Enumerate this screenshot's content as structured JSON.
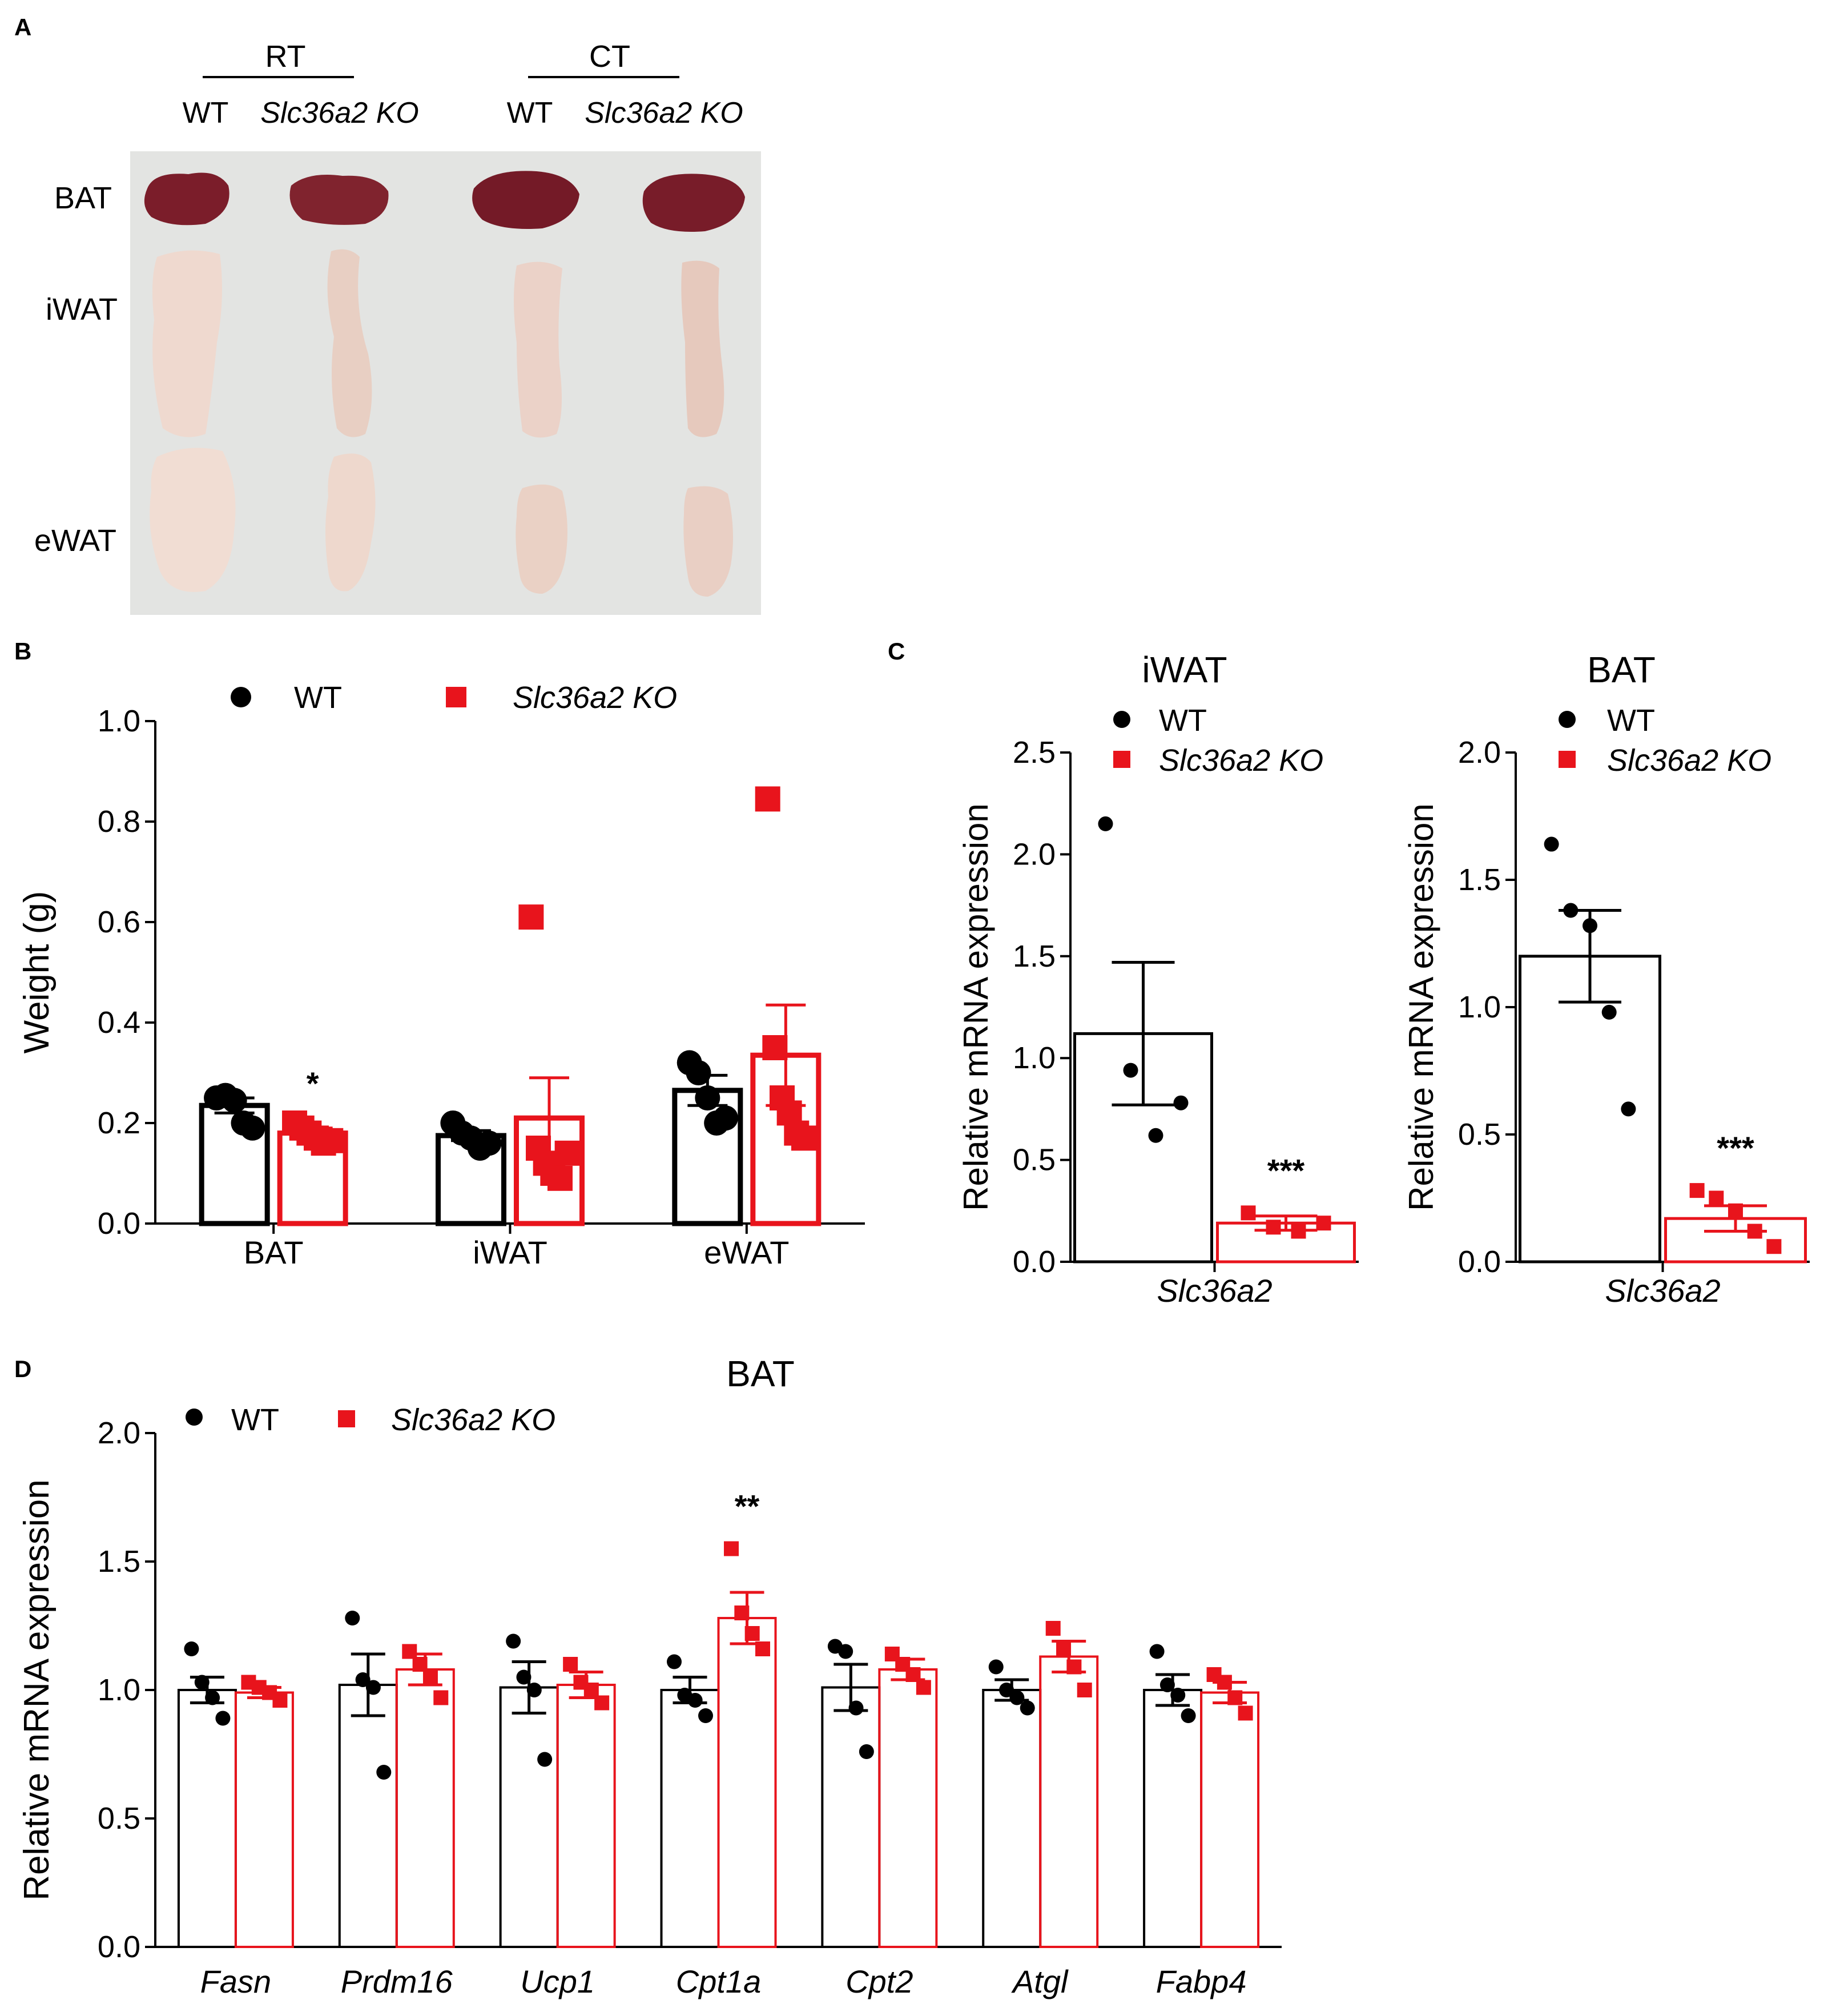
{
  "colors": {
    "wt": "#000000",
    "ko": "#e8141c",
    "photo_bg": "#e3e4e2",
    "bat_tissue": "#7b1d2a",
    "wat_tissue": "#efd9cf"
  },
  "panel_labels": {
    "a": "A",
    "b": "B",
    "c": "C",
    "d": "D"
  },
  "legend": {
    "wt": "WT",
    "ko": "Slc36a2 KO"
  },
  "panel_a": {
    "groups": [
      {
        "label": "RT",
        "columns": [
          "WT",
          "Slc36a2 KO"
        ]
      },
      {
        "label": "CT",
        "columns": [
          "WT",
          "Slc36a2 KO"
        ]
      }
    ],
    "rows": [
      "BAT",
      "iWAT",
      "eWAT"
    ]
  },
  "chart_data": [
    {
      "id": "B",
      "type": "bar",
      "title": "",
      "ylabel": "Weight (g)",
      "xlabel": "",
      "ylim": [
        0,
        1.0
      ],
      "yticks": [
        "0.0",
        "0.2",
        "0.4",
        "0.6",
        "0.8",
        "1.0"
      ],
      "categories": [
        "BAT",
        "iWAT",
        "eWAT"
      ],
      "series": [
        {
          "name": "WT",
          "values": [
            0.235,
            0.175,
            0.265
          ],
          "sem": [
            0.015,
            0.01,
            0.03
          ],
          "points": [
            [
              0.25,
              0.255,
              0.245,
              0.2,
              0.19
            ],
            [
              0.2,
              0.18,
              0.17,
              0.15,
              0.16
            ],
            [
              0.32,
              0.3,
              0.25,
              0.2,
              0.21
            ]
          ]
        },
        {
          "name": "Slc36a2 KO",
          "values": [
            0.18,
            0.21,
            0.335
          ],
          "sem": [
            0.01,
            0.08,
            0.1
          ],
          "points": [
            [
              0.2,
              0.19,
              0.18,
              0.17,
              0.16,
              0.165
            ],
            [
              0.61,
              0.15,
              0.12,
              0.1,
              0.09,
              0.14
            ],
            [
              0.845,
              0.35,
              0.25,
              0.22,
              0.18,
              0.17
            ]
          ]
        }
      ],
      "annotations": [
        {
          "category": "BAT",
          "series": "Slc36a2 KO",
          "text": "*"
        }
      ]
    },
    {
      "id": "C-iWAT",
      "type": "bar",
      "title": "iWAT",
      "ylabel": "Relative mRNA expression",
      "xlabel": "Slc36a2",
      "ylim": [
        0,
        2.5
      ],
      "yticks": [
        "0.0",
        "0.5",
        "1.0",
        "1.5",
        "2.0",
        "2.5"
      ],
      "categories": [
        "Slc36a2"
      ],
      "series": [
        {
          "name": "WT",
          "values": [
            1.12
          ],
          "sem": [
            0.35
          ],
          "points": [
            [
              2.15,
              0.94,
              0.62,
              0.78
            ]
          ]
        },
        {
          "name": "Slc36a2 KO",
          "values": [
            0.19
          ],
          "sem": [
            0.035
          ],
          "points": [
            [
              0.24,
              0.17,
              0.15,
              0.19
            ]
          ]
        }
      ],
      "annotations": [
        {
          "category": "Slc36a2",
          "series": "Slc36a2 KO",
          "text": "***"
        }
      ]
    },
    {
      "id": "C-BAT",
      "type": "bar",
      "title": "BAT",
      "ylabel": "Relative mRNA expression",
      "xlabel": "Slc36a2",
      "ylim": [
        0,
        2.0
      ],
      "yticks": [
        "0.0",
        "0.5",
        "1.0",
        "1.5",
        "2.0"
      ],
      "categories": [
        "Slc36a2"
      ],
      "series": [
        {
          "name": "WT",
          "values": [
            1.2
          ],
          "sem": [
            0.18
          ],
          "points": [
            [
              1.64,
              1.38,
              1.32,
              0.98,
              0.6
            ]
          ]
        },
        {
          "name": "Slc36a2 KO",
          "values": [
            0.17
          ],
          "sem": [
            0.05
          ],
          "points": [
            [
              0.28,
              0.25,
              0.2,
              0.12,
              0.06
            ]
          ]
        }
      ],
      "annotations": [
        {
          "category": "Slc36a2",
          "series": "Slc36a2 KO",
          "text": "***"
        }
      ]
    },
    {
      "id": "D",
      "type": "bar",
      "title": "BAT",
      "ylabel": "Relative mRNA expression",
      "xlabel": "",
      "ylim": [
        0,
        2.0
      ],
      "yticks": [
        "0.0",
        "0.5",
        "1.0",
        "1.5",
        "2.0"
      ],
      "categories": [
        "Fasn",
        "Prdm16",
        "Ucp1",
        "Cpt1a",
        "Cpt2",
        "Atgl",
        "Fabp4"
      ],
      "series": [
        {
          "name": "WT",
          "values": [
            1.0,
            1.02,
            1.01,
            1.0,
            1.01,
            1.0,
            1.0
          ],
          "sem": [
            0.05,
            0.12,
            0.1,
            0.05,
            0.09,
            0.04,
            0.06
          ],
          "points": [
            [
              1.16,
              1.03,
              0.97,
              0.89
            ],
            [
              1.28,
              1.04,
              1.01,
              0.68
            ],
            [
              1.19,
              1.05,
              1.0,
              0.73
            ],
            [
              1.11,
              0.98,
              0.96,
              0.9
            ],
            [
              1.17,
              1.15,
              0.93,
              0.76
            ],
            [
              1.09,
              1.0,
              0.97,
              0.93
            ],
            [
              1.15,
              1.02,
              0.98,
              0.9
            ]
          ]
        },
        {
          "name": "Slc36a2 KO",
          "values": [
            0.99,
            1.08,
            1.02,
            1.28,
            1.08,
            1.13,
            0.99
          ],
          "sem": [
            0.02,
            0.06,
            0.05,
            0.1,
            0.04,
            0.06,
            0.04
          ],
          "points": [
            [
              1.03,
              1.01,
              0.99,
              0.96
            ],
            [
              1.15,
              1.1,
              1.05,
              0.97
            ],
            [
              1.1,
              1.03,
              1.0,
              0.95
            ],
            [
              1.55,
              1.3,
              1.22,
              1.16
            ],
            [
              1.14,
              1.1,
              1.06,
              1.01
            ],
            [
              1.24,
              1.16,
              1.09,
              1.0
            ],
            [
              1.06,
              1.03,
              0.97,
              0.91
            ]
          ]
        }
      ],
      "annotations": [
        {
          "category": "Cpt1a",
          "series": "Slc36a2 KO",
          "text": "**"
        }
      ]
    }
  ]
}
